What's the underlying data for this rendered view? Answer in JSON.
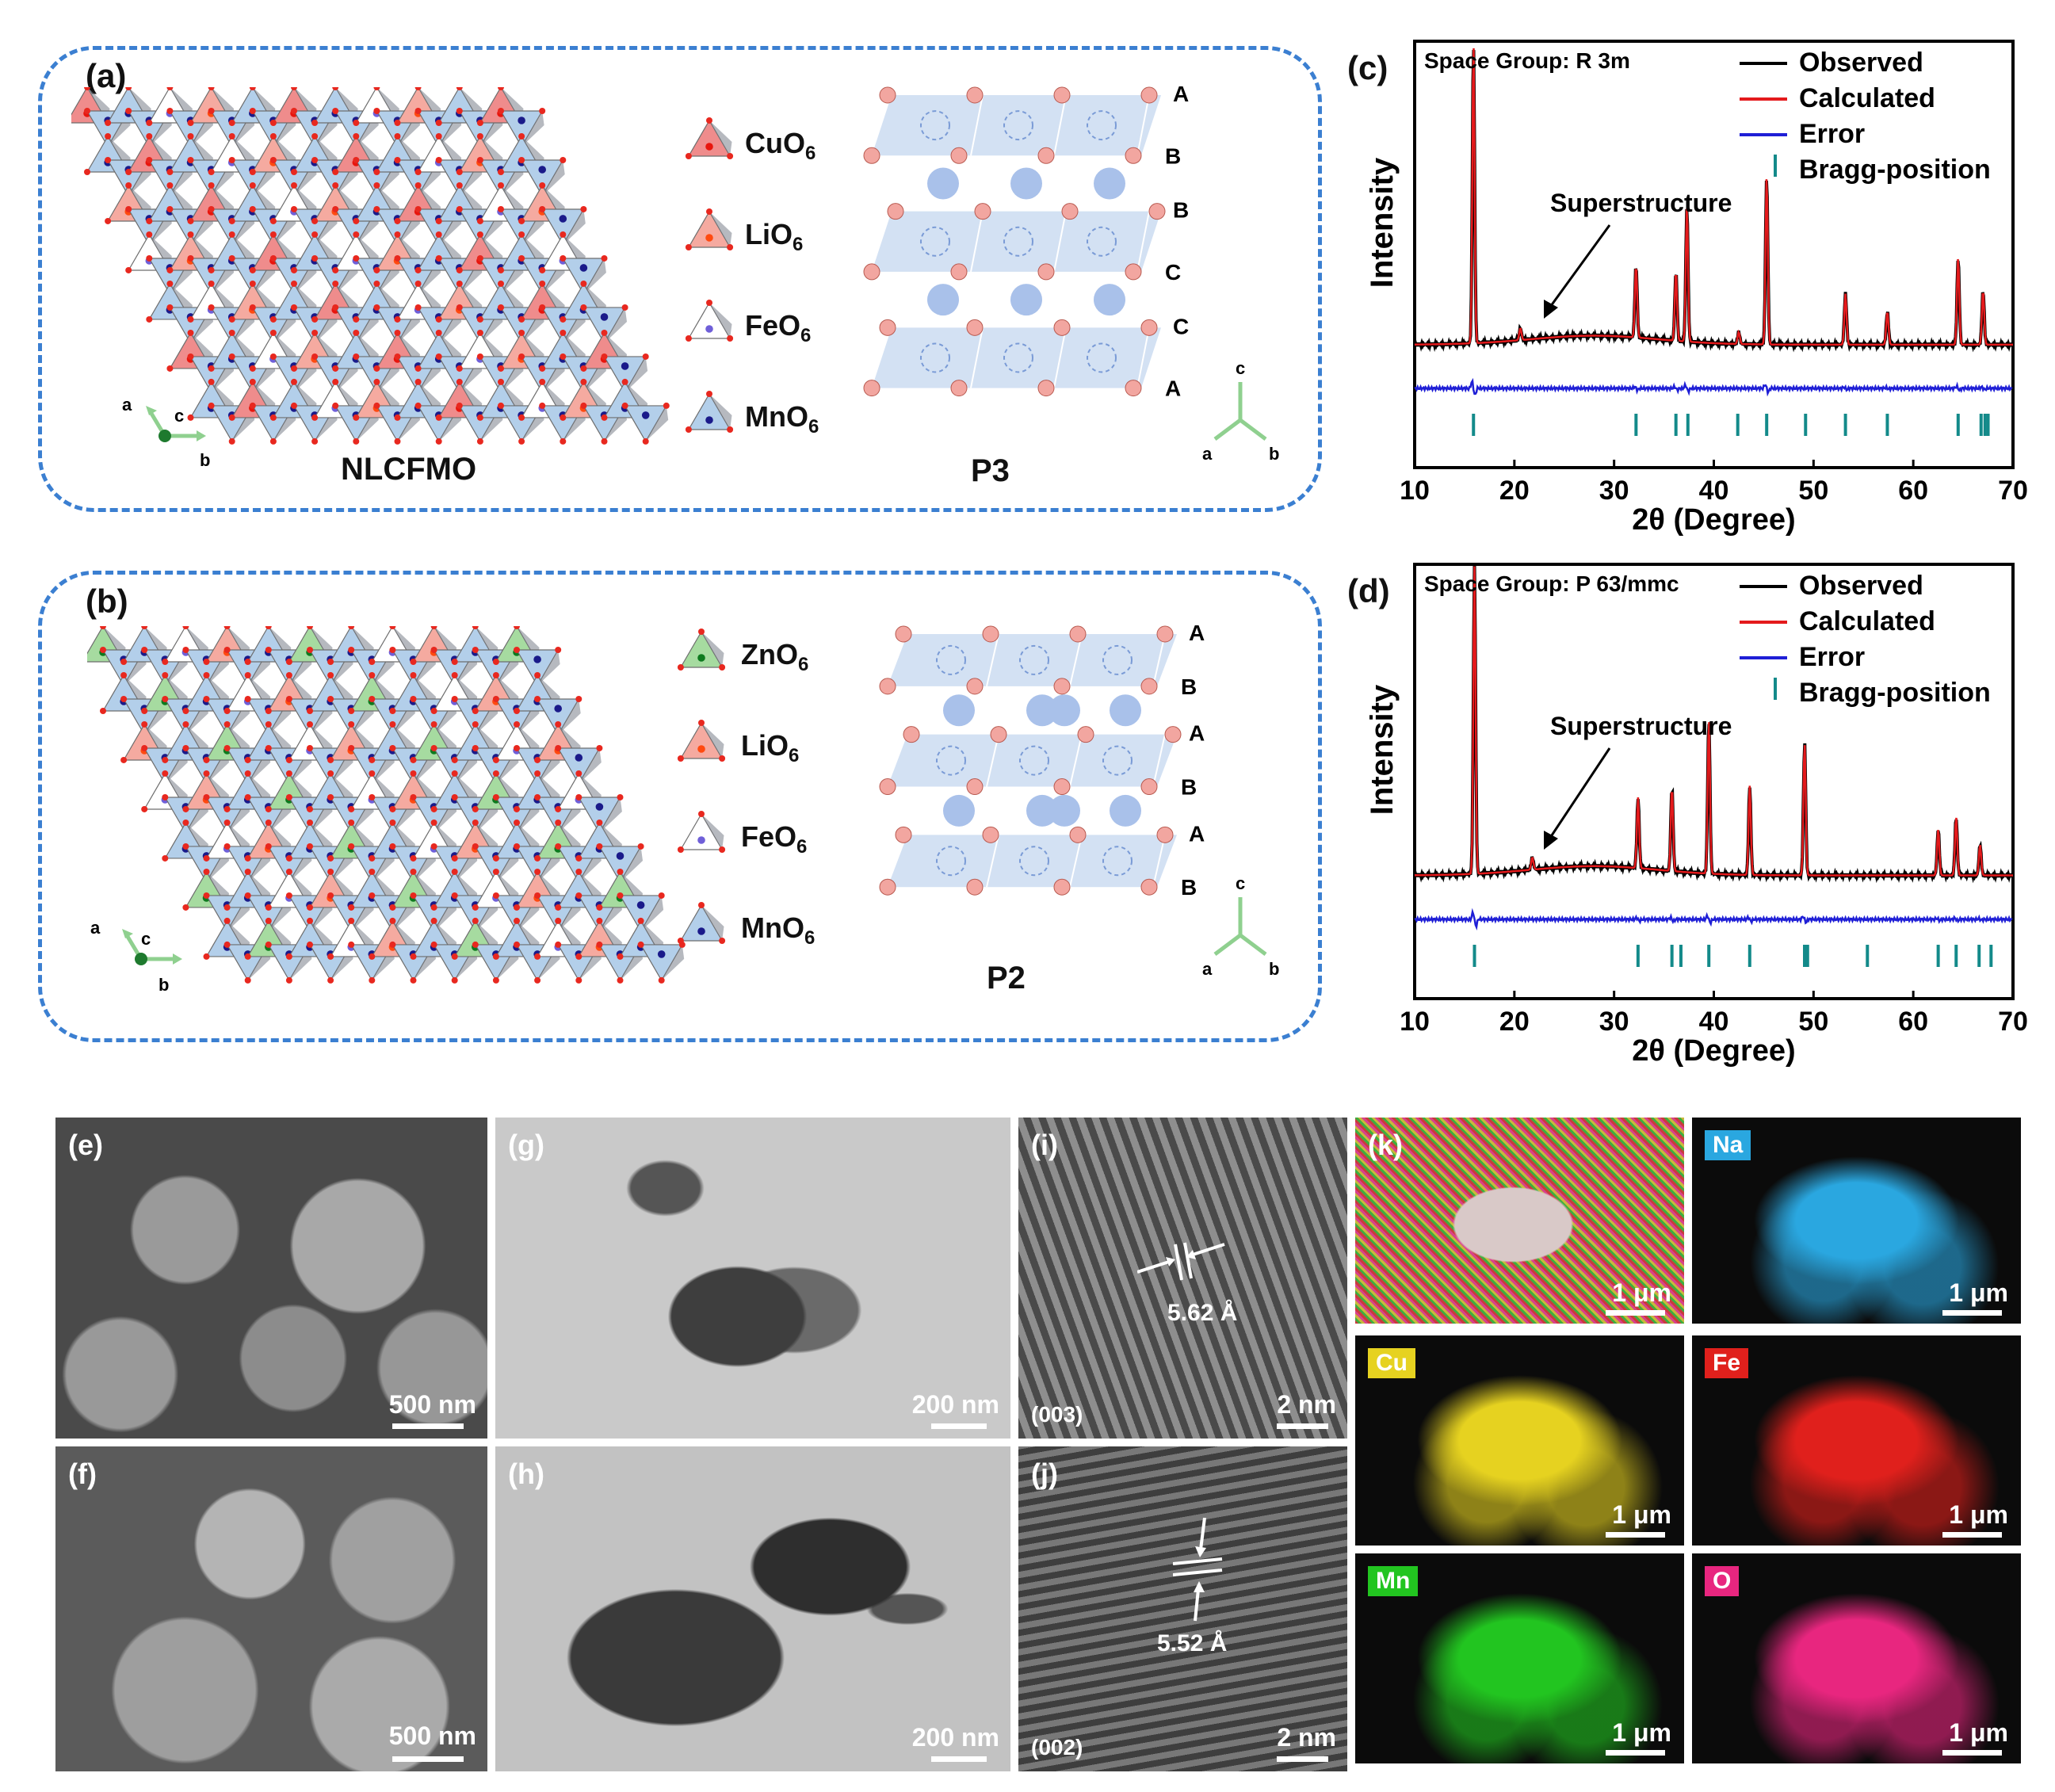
{
  "panels": {
    "a": {
      "label": "(a)",
      "structure_name": "NLCFMO",
      "legend": [
        "CuO6",
        "LiO6",
        "FeO6",
        "MnO6"
      ],
      "stack_name": "P3",
      "stack_layers": [
        "A",
        "B",
        "B",
        "C",
        "C",
        "A"
      ],
      "axes_left": {
        "a": "a",
        "c": "c",
        "b": "b"
      },
      "axes_right": {
        "c": "c",
        "a": "a",
        "b": "b"
      }
    },
    "b": {
      "label": "(b)",
      "legend": [
        "ZnO6",
        "LiO6",
        "FeO6",
        "MnO6"
      ],
      "stack_name": "P2",
      "stack_layers": [
        "A",
        "B",
        "A",
        "B",
        "A",
        "B"
      ],
      "axes_left": {
        "a": "a",
        "c": "c",
        "b": "b"
      },
      "axes_right": {
        "c": "c",
        "a": "a",
        "b": "b"
      }
    },
    "e": {
      "label": "(e)",
      "scale": "500 nm"
    },
    "f": {
      "label": "(f)",
      "scale": "500 nm"
    },
    "g": {
      "label": "(g)",
      "scale": "200 nm"
    },
    "h": {
      "label": "(h)",
      "scale": "200 nm"
    },
    "i": {
      "label": "(i)",
      "spacing": "5.62 Å",
      "plane": "(003)",
      "scale": "2 nm"
    },
    "j": {
      "label": "(j)",
      "spacing": "5.52 Å",
      "plane": "(002)",
      "scale": "2 nm"
    },
    "k": {
      "label": "(k)",
      "scale": "1 μm",
      "maps": [
        {
          "element": "Na",
          "color": "#2aa7e0"
        },
        {
          "element": "Cu",
          "color": "#e6d220"
        },
        {
          "element": "Fe",
          "color": "#e0201c"
        },
        {
          "element": "Mn",
          "color": "#22c520"
        },
        {
          "element": "O",
          "color": "#e8267f"
        }
      ]
    }
  },
  "chart_data": [
    {
      "panel": "(c)",
      "type": "line",
      "title": "Space Group: R 3m",
      "xlabel": "2θ (Degree)",
      "ylabel": "Intensity",
      "xlim": [
        10,
        70
      ],
      "xticks": [
        10,
        20,
        30,
        40,
        50,
        60,
        70
      ],
      "annotation": "Superstructure",
      "legend": [
        "Observed",
        "Calculated",
        "Error",
        "Bragg-position"
      ],
      "colors": {
        "observed": "#000000",
        "calculated": "#e41a1c",
        "error": "#1f1fd6",
        "bragg": "#138a8a"
      },
      "peaks": [
        {
          "x": 15.9,
          "y": 100
        },
        {
          "x": 20.6,
          "y": 4
        },
        {
          "x": 32.2,
          "y": 24
        },
        {
          "x": 36.2,
          "y": 23
        },
        {
          "x": 37.3,
          "y": 45
        },
        {
          "x": 42.5,
          "y": 4
        },
        {
          "x": 45.3,
          "y": 56
        },
        {
          "x": 53.2,
          "y": 17
        },
        {
          "x": 57.4,
          "y": 11
        },
        {
          "x": 64.5,
          "y": 29
        },
        {
          "x": 67.0,
          "y": 18
        }
      ],
      "bragg_positions": [
        15.9,
        32.2,
        36.2,
        37.4,
        42.4,
        45.3,
        49.2,
        53.2,
        57.4,
        64.5,
        66.8,
        67.2,
        67.5
      ]
    },
    {
      "panel": "(d)",
      "type": "line",
      "title": "Space Group: P 63/mmc",
      "xlabel": "2θ (Degree)",
      "ylabel": "Intensity",
      "xlim": [
        10,
        70
      ],
      "xticks": [
        10,
        20,
        30,
        40,
        50,
        60,
        70
      ],
      "annotation": "Superstructure",
      "legend": [
        "Observed",
        "Calculated",
        "Error",
        "Bragg-position"
      ],
      "colors": {
        "observed": "#000000",
        "calculated": "#e41a1c",
        "error": "#1f1fd6",
        "bragg": "#138a8a"
      },
      "peaks": [
        {
          "x": 16.0,
          "y": 100
        },
        {
          "x": 21.8,
          "y": 4
        },
        {
          "x": 32.4,
          "y": 23
        },
        {
          "x": 35.8,
          "y": 27
        },
        {
          "x": 39.5,
          "y": 50
        },
        {
          "x": 43.6,
          "y": 29
        },
        {
          "x": 49.1,
          "y": 43
        },
        {
          "x": 62.5,
          "y": 15
        },
        {
          "x": 64.3,
          "y": 19
        },
        {
          "x": 66.7,
          "y": 10
        }
      ],
      "bragg_positions": [
        16.0,
        32.4,
        35.8,
        36.7,
        39.5,
        43.6,
        49.1,
        49.4,
        55.4,
        62.5,
        64.3,
        66.6,
        67.8
      ]
    }
  ]
}
